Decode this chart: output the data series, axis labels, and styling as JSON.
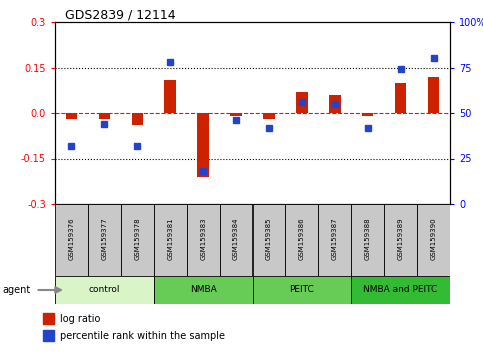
{
  "title": "GDS2839 / 12114",
  "samples": [
    "GSM159376",
    "GSM159377",
    "GSM159378",
    "GSM159381",
    "GSM159383",
    "GSM159384",
    "GSM159385",
    "GSM159386",
    "GSM159387",
    "GSM159388",
    "GSM159389",
    "GSM159390"
  ],
  "log_ratio": [
    -0.02,
    -0.02,
    -0.04,
    0.11,
    -0.21,
    -0.01,
    -0.02,
    0.07,
    0.06,
    -0.01,
    0.1,
    0.12
  ],
  "percentile_rank": [
    32,
    44,
    32,
    78,
    18,
    46,
    42,
    56,
    55,
    42,
    74,
    80
  ],
  "groups": [
    {
      "label": "control",
      "start": 0,
      "end": 3,
      "color": "#d9f5c8"
    },
    {
      "label": "NMBA",
      "start": 3,
      "end": 6,
      "color": "#66cc55"
    },
    {
      "label": "PEITC",
      "start": 6,
      "end": 9,
      "color": "#66cc55"
    },
    {
      "label": "NMBA and PEITC",
      "start": 9,
      "end": 12,
      "color": "#33bb33"
    }
  ],
  "ylim": [
    -0.3,
    0.3
  ],
  "yticks_left": [
    -0.3,
    -0.15,
    0.0,
    0.15,
    0.3
  ],
  "yticks_right": [
    0,
    25,
    50,
    75,
    100
  ],
  "hlines": [
    0.15,
    -0.15
  ],
  "bar_color": "#cc2200",
  "dot_color": "#2244cc",
  "zero_line_color": "#cc2200",
  "bg_color": "#ffffff",
  "plot_bg": "#ffffff",
  "label_log_ratio": "log ratio",
  "label_percentile": "percentile rank within the sample",
  "agent_label": "agent",
  "sample_box_color": "#c8c8c8",
  "group_border_color": "#000000"
}
